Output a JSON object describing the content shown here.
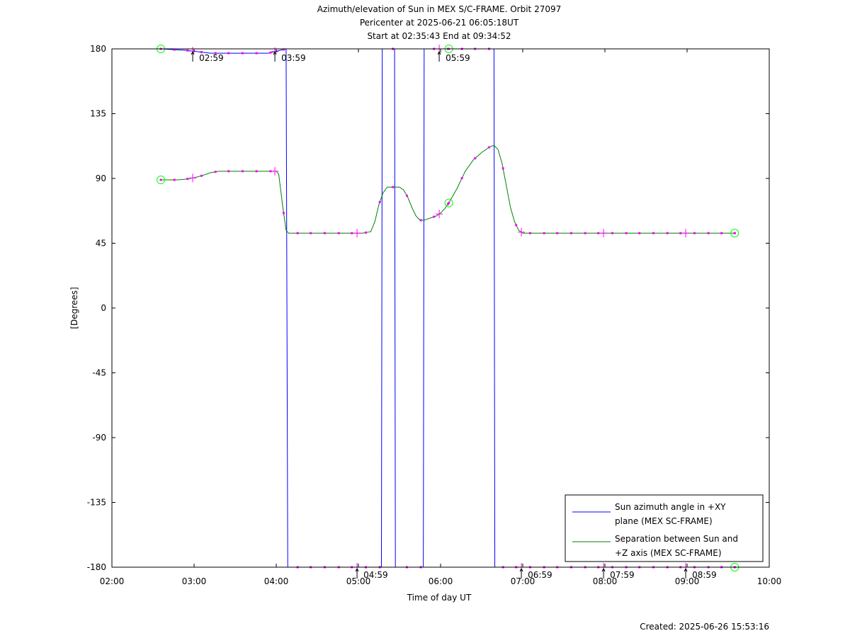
{
  "header": {
    "title_line1": "Azimuth/elevation of Sun in MEX S/C-FRAME.  Orbit 27097",
    "title_line2": "Pericenter at 2025-06-21 06:05:18UT",
    "title_line3": "Start at 02:35:43 End at 09:34:52"
  },
  "footer": {
    "created": "Created: 2025-06-26 15:53:16"
  },
  "colors": {
    "azimuth": "#0000ff",
    "separation": "#008000",
    "markers": "#ff00ff",
    "endpoints": "#00ff00"
  },
  "chart_data": {
    "type": "line",
    "xlabel": "Time of day UT",
    "ylabel": "[Degrees]",
    "x_unit": "hours (time of day)",
    "xlim": [
      2.0,
      10.0
    ],
    "ylim": [
      -180,
      180
    ],
    "x_ticks": [
      "02:00",
      "03:00",
      "04:00",
      "05:00",
      "06:00",
      "07:00",
      "08:00",
      "09:00",
      "10:00"
    ],
    "y_ticks": [
      "180",
      "135",
      "90",
      "45",
      "0",
      "-45",
      "-90",
      "-135",
      "-180"
    ],
    "legend_position": "bottom-right",
    "series": [
      {
        "name": "Sun azimuth angle in +XY plane (MEX SC-FRAME)",
        "legend_lines": [
          "Sun azimuth angle in +XY",
          "plane (MEX SC-FRAME)"
        ],
        "color": "#0000ff",
        "segments": [
          [
            [
              2.595,
              180
            ],
            [
              2.9,
              179
            ],
            [
              3.2,
              177
            ],
            [
              3.5,
              177
            ],
            [
              3.9,
              177
            ],
            [
              4.05,
              179
            ],
            [
              4.12,
              180
            ]
          ],
          [
            [
              4.14,
              -180
            ],
            [
              5.28,
              -180
            ]
          ],
          [
            [
              5.29,
              180
            ],
            [
              5.44,
              180
            ]
          ],
          [
            [
              5.45,
              -180
            ],
            [
              5.79,
              -180
            ]
          ],
          [
            [
              5.8,
              180
            ],
            [
              6.65,
              180
            ]
          ],
          [
            [
              6.66,
              -180
            ],
            [
              9.58,
              -180
            ]
          ]
        ]
      },
      {
        "name": "Separation between Sun and +Z axis (MEX SC-FRAME)",
        "legend_lines": [
          "Separation between Sun and",
          "+Z axis (MEX SC-FRAME)"
        ],
        "color": "#008000",
        "points": [
          [
            2.595,
            89
          ],
          [
            2.7,
            89
          ],
          [
            2.8,
            89
          ],
          [
            2.9,
            89.5
          ],
          [
            3.0,
            90.5
          ],
          [
            3.1,
            92
          ],
          [
            3.2,
            94
          ],
          [
            3.3,
            95
          ],
          [
            3.4,
            95
          ],
          [
            3.5,
            95
          ],
          [
            3.6,
            95
          ],
          [
            3.7,
            95
          ],
          [
            3.8,
            95
          ],
          [
            3.9,
            95
          ],
          [
            4.0,
            95
          ],
          [
            4.03,
            93
          ],
          [
            4.08,
            70
          ],
          [
            4.12,
            54
          ],
          [
            4.15,
            52
          ],
          [
            4.2,
            52
          ],
          [
            4.3,
            52
          ],
          [
            4.5,
            52
          ],
          [
            4.7,
            52
          ],
          [
            4.9,
            52
          ],
          [
            5.05,
            52
          ],
          [
            5.15,
            53
          ],
          [
            5.2,
            60
          ],
          [
            5.25,
            72
          ],
          [
            5.3,
            80
          ],
          [
            5.35,
            84
          ],
          [
            5.4,
            84
          ],
          [
            5.5,
            84
          ],
          [
            5.55,
            82
          ],
          [
            5.6,
            77
          ],
          [
            5.65,
            70
          ],
          [
            5.7,
            64
          ],
          [
            5.75,
            61
          ],
          [
            5.8,
            61
          ],
          [
            5.85,
            62
          ],
          [
            5.9,
            63
          ],
          [
            5.95,
            64
          ],
          [
            6.0,
            66
          ],
          [
            6.05,
            69
          ],
          [
            6.1,
            73
          ],
          [
            6.2,
            83
          ],
          [
            6.3,
            95
          ],
          [
            6.4,
            103
          ],
          [
            6.5,
            108
          ],
          [
            6.6,
            112
          ],
          [
            6.65,
            113
          ],
          [
            6.7,
            110
          ],
          [
            6.75,
            100
          ],
          [
            6.8,
            85
          ],
          [
            6.85,
            70
          ],
          [
            6.9,
            60
          ],
          [
            6.95,
            54
          ],
          [
            7.0,
            52
          ],
          [
            7.2,
            52
          ],
          [
            7.5,
            52
          ],
          [
            8.0,
            52
          ],
          [
            8.5,
            52
          ],
          [
            9.0,
            52
          ],
          [
            9.5,
            52
          ],
          [
            9.58,
            52
          ]
        ]
      }
    ],
    "annotations": [
      {
        "label": "02:59",
        "x": 2.9833,
        "y": 180
      },
      {
        "label": "03:59",
        "x": 3.9833,
        "y": 180
      },
      {
        "label": "05:59",
        "x": 5.9833,
        "y": 180
      },
      {
        "label": "04:59",
        "x": 4.9833,
        "y": -180
      },
      {
        "label": "06:59",
        "x": 6.9833,
        "y": -180
      },
      {
        "label": "07:59",
        "x": 7.9833,
        "y": -180
      },
      {
        "label": "08:59",
        "x": 8.9833,
        "y": -180
      }
    ],
    "endpoint_markers": [
      [
        2.595,
        180
      ],
      [
        2.595,
        89
      ],
      [
        6.1,
        73
      ],
      [
        6.1,
        180
      ],
      [
        9.58,
        52
      ],
      [
        9.58,
        -180
      ]
    ],
    "marker_times": [
      2.595,
      2.76,
      2.92,
      3.09,
      3.26,
      3.42,
      3.59,
      3.76,
      3.93,
      4.09,
      4.26,
      4.42,
      4.59,
      4.76,
      4.92,
      5.09,
      5.26,
      5.42,
      5.59,
      5.76,
      5.92,
      6.09,
      6.26,
      6.42,
      6.59,
      6.76,
      6.92,
      7.09,
      7.26,
      7.42,
      7.59,
      7.76,
      7.92,
      8.09,
      8.26,
      8.42,
      8.59,
      8.76,
      8.92,
      9.09,
      9.26,
      9.42,
      9.58
    ],
    "tick_marker_times": [
      2.9833,
      3.9833,
      4.9833,
      5.9833,
      6.9833,
      7.9833,
      8.9833
    ]
  }
}
